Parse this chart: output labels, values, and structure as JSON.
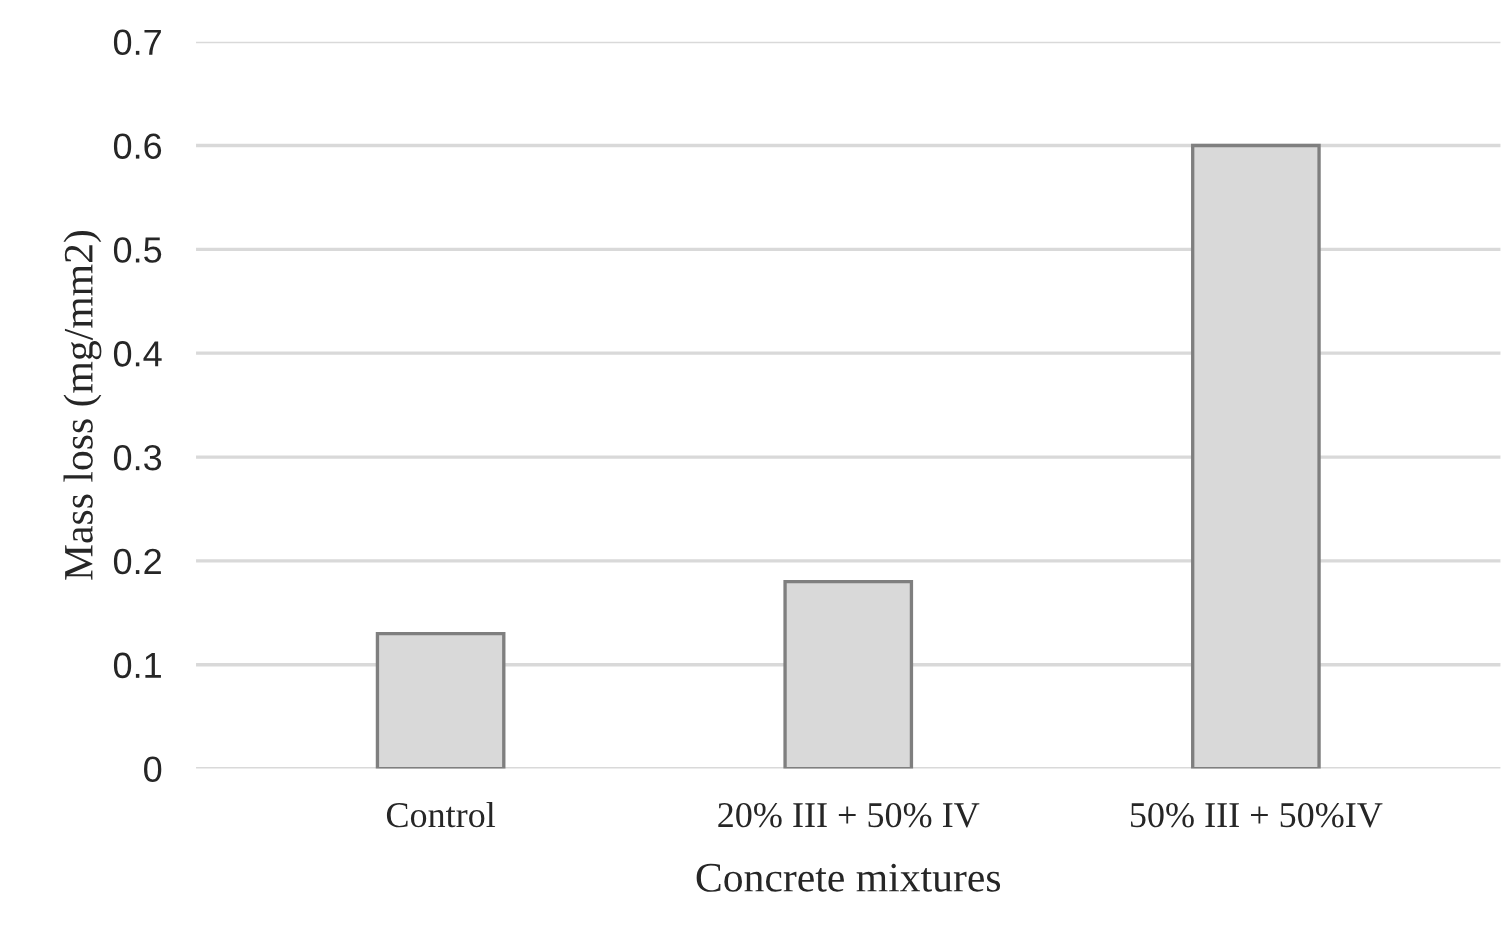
{
  "chart_data": {
    "type": "bar",
    "xlabel": "Concrete mixtures",
    "ylabel": "Mass loss (mg/mm2)",
    "categories": [
      "Control",
      "20% III + 50% IV",
      "50% III + 50%IV"
    ],
    "values": [
      0.13,
      0.18,
      0.6
    ],
    "color": "#d9d9d9",
    "ylim": [
      0,
      0.7
    ],
    "yticks": [
      0,
      0.1,
      0.2,
      0.3,
      0.4,
      0.5,
      0.6,
      0.7
    ],
    "grid": "y"
  }
}
